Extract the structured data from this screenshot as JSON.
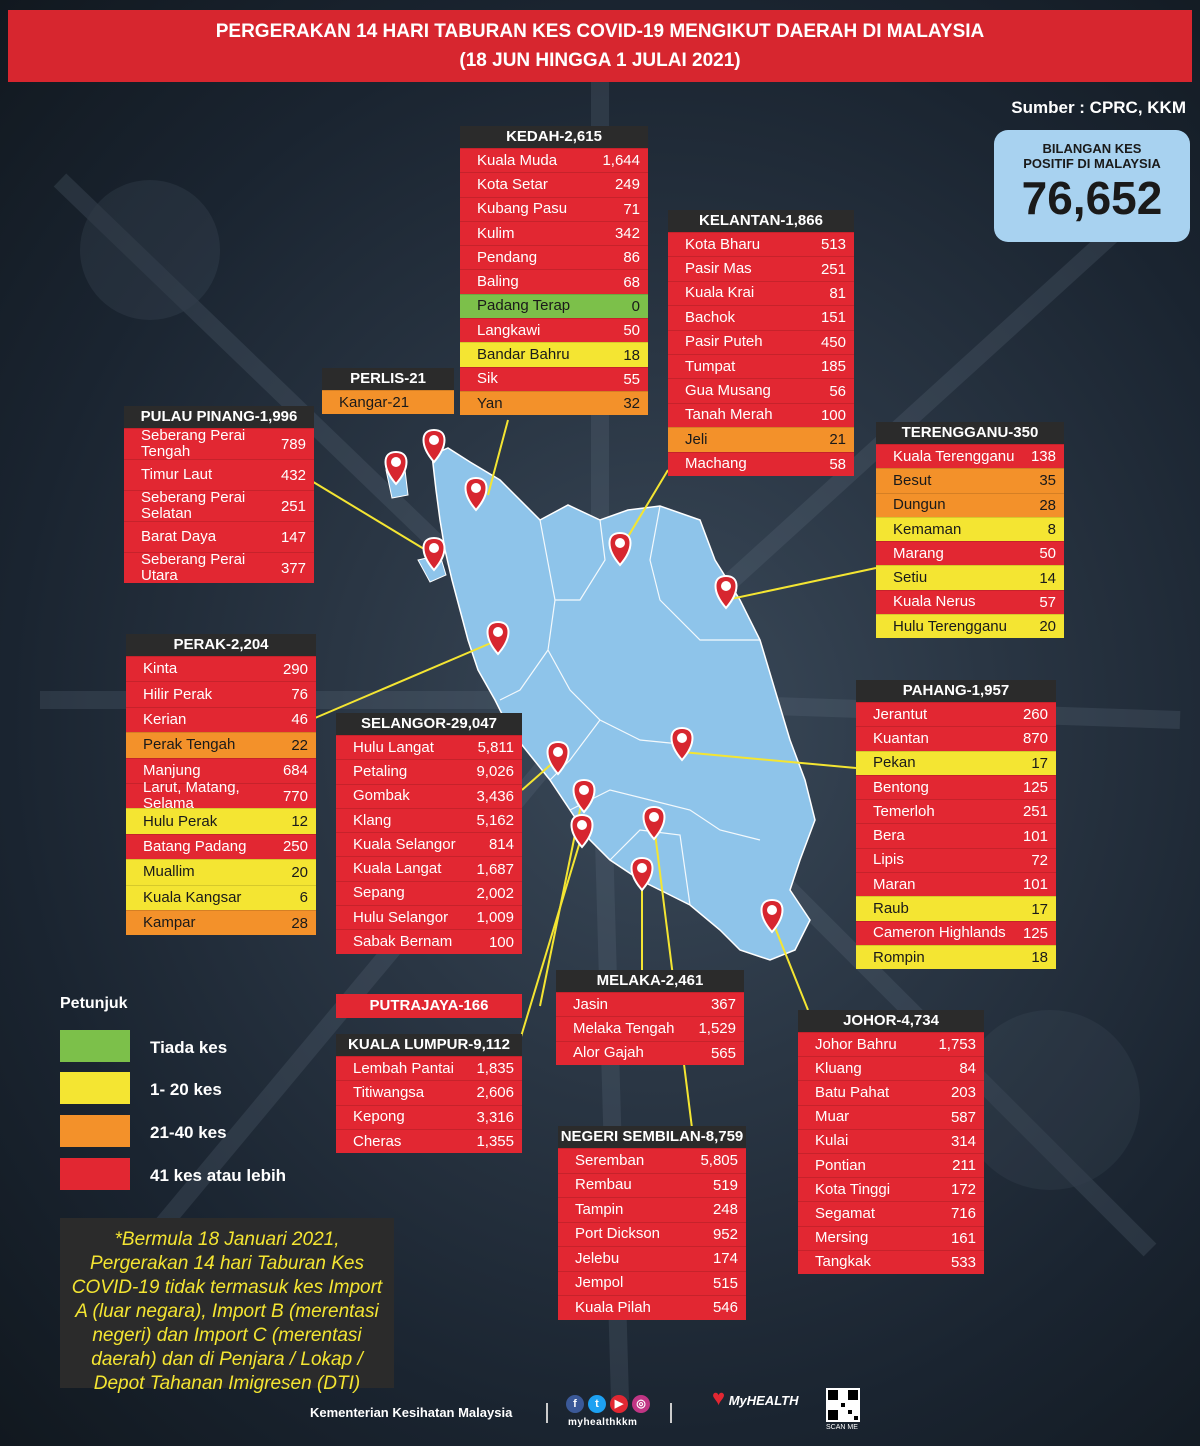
{
  "title": {
    "line1": "PERGERAKAN 14 HARI TABURAN KES COVID-19 MENGIKUT DAERAH DI MALAYSIA",
    "line2": "(18 JUN HINGGA 1 JULAI 2021)"
  },
  "source": "Sumber : CPRC, KKM",
  "total": {
    "label_line1": "BILANGAN KES",
    "label_line2": "POSITIF DI MALAYSIA",
    "value": "76,652"
  },
  "colors": {
    "none": "#7cc04a",
    "low": "#f4e532",
    "mid": "#f3912a",
    "high": "#e22732",
    "header": "#2b2b2b",
    "map": "#8ec4ea"
  },
  "states": {
    "kedah": {
      "title": "KEDAH-2,615",
      "rows": [
        {
          "name": "Kuala Muda",
          "value": "1,644",
          "level": "r"
        },
        {
          "name": "Kota Setar",
          "value": "249",
          "level": "r"
        },
        {
          "name": "Kubang Pasu",
          "value": "71",
          "level": "r"
        },
        {
          "name": "Kulim",
          "value": "342",
          "level": "r"
        },
        {
          "name": "Pendang",
          "value": "86",
          "level": "r"
        },
        {
          "name": "Baling",
          "value": "68",
          "level": "r"
        },
        {
          "name": "Padang Terap",
          "value": "0",
          "level": "g"
        },
        {
          "name": "Langkawi",
          "value": "50",
          "level": "r"
        },
        {
          "name": "Bandar Bahru",
          "value": "18",
          "level": "y"
        },
        {
          "name": "Sik",
          "value": "55",
          "level": "r"
        },
        {
          "name": "Yan",
          "value": "32",
          "level": "o"
        }
      ]
    },
    "kelantan": {
      "title": "KELANTAN-1,866",
      "rows": [
        {
          "name": "Kota Bharu",
          "value": "513",
          "level": "r"
        },
        {
          "name": "Pasir Mas",
          "value": "251",
          "level": "r"
        },
        {
          "name": "Kuala Krai",
          "value": "81",
          "level": "r"
        },
        {
          "name": "Bachok",
          "value": "151",
          "level": "r"
        },
        {
          "name": "Pasir Puteh",
          "value": "450",
          "level": "r"
        },
        {
          "name": "Tumpat",
          "value": "185",
          "level": "r"
        },
        {
          "name": "Gua Musang",
          "value": "56",
          "level": "r"
        },
        {
          "name": "Tanah Merah",
          "value": "100",
          "level": "r"
        },
        {
          "name": "Jeli",
          "value": "21",
          "level": "o"
        },
        {
          "name": "Machang",
          "value": "58",
          "level": "r"
        }
      ]
    },
    "perlis": {
      "title": "PERLIS-21",
      "rows": [
        {
          "name": "Kangar-21",
          "value": "",
          "level": "o"
        }
      ]
    },
    "pulau_pinang": {
      "title": "PULAU PINANG-1,996",
      "rows": [
        {
          "name": "Seberang Perai Tengah",
          "value": "789",
          "level": "r"
        },
        {
          "name": "Timur Laut",
          "value": "432",
          "level": "r"
        },
        {
          "name": "Seberang Perai Selatan",
          "value": "251",
          "level": "r"
        },
        {
          "name": "Barat Daya",
          "value": "147",
          "level": "r"
        },
        {
          "name": "Seberang Perai Utara",
          "value": "377",
          "level": "r"
        }
      ]
    },
    "terengganu": {
      "title": "TERENGGANU-350",
      "rows": [
        {
          "name": "Kuala Terengganu",
          "value": "138",
          "level": "r"
        },
        {
          "name": "Besut",
          "value": "35",
          "level": "o"
        },
        {
          "name": "Dungun",
          "value": "28",
          "level": "o"
        },
        {
          "name": "Kemaman",
          "value": "8",
          "level": "y"
        },
        {
          "name": "Marang",
          "value": "50",
          "level": "r"
        },
        {
          "name": "Setiu",
          "value": "14",
          "level": "y"
        },
        {
          "name": "Kuala Nerus",
          "value": "57",
          "level": "r"
        },
        {
          "name": "Hulu Terengganu",
          "value": "20",
          "level": "y"
        }
      ]
    },
    "perak": {
      "title": "PERAK-2,204",
      "rows": [
        {
          "name": "Kinta",
          "value": "290",
          "level": "r"
        },
        {
          "name": "Hilir Perak",
          "value": "76",
          "level": "r"
        },
        {
          "name": "Kerian",
          "value": "46",
          "level": "r"
        },
        {
          "name": "Perak Tengah",
          "value": "22",
          "level": "o"
        },
        {
          "name": "Manjung",
          "value": "684",
          "level": "r"
        },
        {
          "name": "Larut, Matang, Selama",
          "value": "770",
          "level": "r"
        },
        {
          "name": "Hulu Perak",
          "value": "12",
          "level": "y"
        },
        {
          "name": "Batang Padang",
          "value": "250",
          "level": "r"
        },
        {
          "name": "Muallim",
          "value": "20",
          "level": "y"
        },
        {
          "name": "Kuala Kangsar",
          "value": "6",
          "level": "y"
        },
        {
          "name": "Kampar",
          "value": "28",
          "level": "o"
        }
      ]
    },
    "selangor": {
      "title": "SELANGOR-29,047",
      "rows": [
        {
          "name": "Hulu Langat",
          "value": "5,811",
          "level": "r"
        },
        {
          "name": "Petaling",
          "value": "9,026",
          "level": "r"
        },
        {
          "name": "Gombak",
          "value": "3,436",
          "level": "r"
        },
        {
          "name": "Klang",
          "value": "5,162",
          "level": "r"
        },
        {
          "name": "Kuala Selangor",
          "value": "814",
          "level": "r"
        },
        {
          "name": "Kuala Langat",
          "value": "1,687",
          "level": "r"
        },
        {
          "name": "Sepang",
          "value": "2,002",
          "level": "r"
        },
        {
          "name": "Hulu Selangor",
          "value": "1,009",
          "level": "r"
        },
        {
          "name": "Sabak Bernam",
          "value": "100",
          "level": "r"
        }
      ]
    },
    "pahang": {
      "title": "PAHANG-1,957",
      "rows": [
        {
          "name": "Jerantut",
          "value": "260",
          "level": "r"
        },
        {
          "name": "Kuantan",
          "value": "870",
          "level": "r"
        },
        {
          "name": "Pekan",
          "value": "17",
          "level": "y"
        },
        {
          "name": "Bentong",
          "value": "125",
          "level": "r"
        },
        {
          "name": "Temerloh",
          "value": "251",
          "level": "r"
        },
        {
          "name": "Bera",
          "value": "101",
          "level": "r"
        },
        {
          "name": "Lipis",
          "value": "72",
          "level": "r"
        },
        {
          "name": "Maran",
          "value": "101",
          "level": "r"
        },
        {
          "name": "Raub",
          "value": "17",
          "level": "y"
        },
        {
          "name": "Cameron Highlands",
          "value": "125",
          "level": "r"
        },
        {
          "name": "Rompin",
          "value": "18",
          "level": "y"
        }
      ]
    },
    "putrajaya": {
      "title": "PUTRAJAYA-166"
    },
    "melaka": {
      "title": "MELAKA-2,461",
      "rows": [
        {
          "name": "Jasin",
          "value": "367",
          "level": "r"
        },
        {
          "name": "Melaka Tengah",
          "value": "1,529",
          "level": "r"
        },
        {
          "name": "Alor Gajah",
          "value": "565",
          "level": "r"
        }
      ]
    },
    "kuala_lumpur": {
      "title": "KUALA LUMPUR-9,112",
      "rows": [
        {
          "name": "Lembah Pantai",
          "value": "1,835",
          "level": "r"
        },
        {
          "name": "Titiwangsa",
          "value": "2,606",
          "level": "r"
        },
        {
          "name": "Kepong",
          "value": "3,316",
          "level": "r"
        },
        {
          "name": "Cheras",
          "value": "1,355",
          "level": "r"
        }
      ]
    },
    "johor": {
      "title": "JOHOR-4,734",
      "rows": [
        {
          "name": "Johor Bahru",
          "value": "1,753",
          "level": "r"
        },
        {
          "name": "Kluang",
          "value": "84",
          "level": "r"
        },
        {
          "name": "Batu Pahat",
          "value": "203",
          "level": "r"
        },
        {
          "name": "Muar",
          "value": "587",
          "level": "r"
        },
        {
          "name": "Kulai",
          "value": "314",
          "level": "r"
        },
        {
          "name": "Pontian",
          "value": "211",
          "level": "r"
        },
        {
          "name": "Kota Tinggi",
          "value": "172",
          "level": "r"
        },
        {
          "name": "Segamat",
          "value": "716",
          "level": "r"
        },
        {
          "name": "Mersing",
          "value": "161",
          "level": "r"
        },
        {
          "name": "Tangkak",
          "value": "533",
          "level": "r"
        }
      ]
    },
    "negeri_sembilan": {
      "title": "NEGERI SEMBILAN-8,759",
      "rows": [
        {
          "name": "Seremban",
          "value": "5,805",
          "level": "r"
        },
        {
          "name": "Rembau",
          "value": "519",
          "level": "r"
        },
        {
          "name": "Tampin",
          "value": "248",
          "level": "r"
        },
        {
          "name": "Port Dickson",
          "value": "952",
          "level": "r"
        },
        {
          "name": "Jelebu",
          "value": "174",
          "level": "r"
        },
        {
          "name": "Jempol",
          "value": "515",
          "level": "r"
        },
        {
          "name": "Kuala Pilah",
          "value": "546",
          "level": "r"
        }
      ]
    }
  },
  "legend": {
    "title": "Petunjuk",
    "items": [
      {
        "label": "Tiada kes",
        "level": "g"
      },
      {
        "label": "1- 20 kes",
        "level": "y"
      },
      {
        "label": "21-40 kes",
        "level": "o"
      },
      {
        "label": "41 kes atau lebih",
        "level": "r"
      }
    ]
  },
  "note": "*Bermula 18 Januari 2021, Pergerakan 14 hari Taburan Kes COVID-19 tidak termasuk kes Import A (luar negara), Import B (merentasi negeri) dan Import C (merentasi daerah) dan di Penjara / Lokap / Depot Tahanan Imigresen (DTI)",
  "footer": {
    "ministry": "Kementerian Kesihatan Malaysia",
    "handle": "myhealthkkm",
    "logo_text": "MyHEALTH",
    "qr_label": "SCAN ME"
  }
}
